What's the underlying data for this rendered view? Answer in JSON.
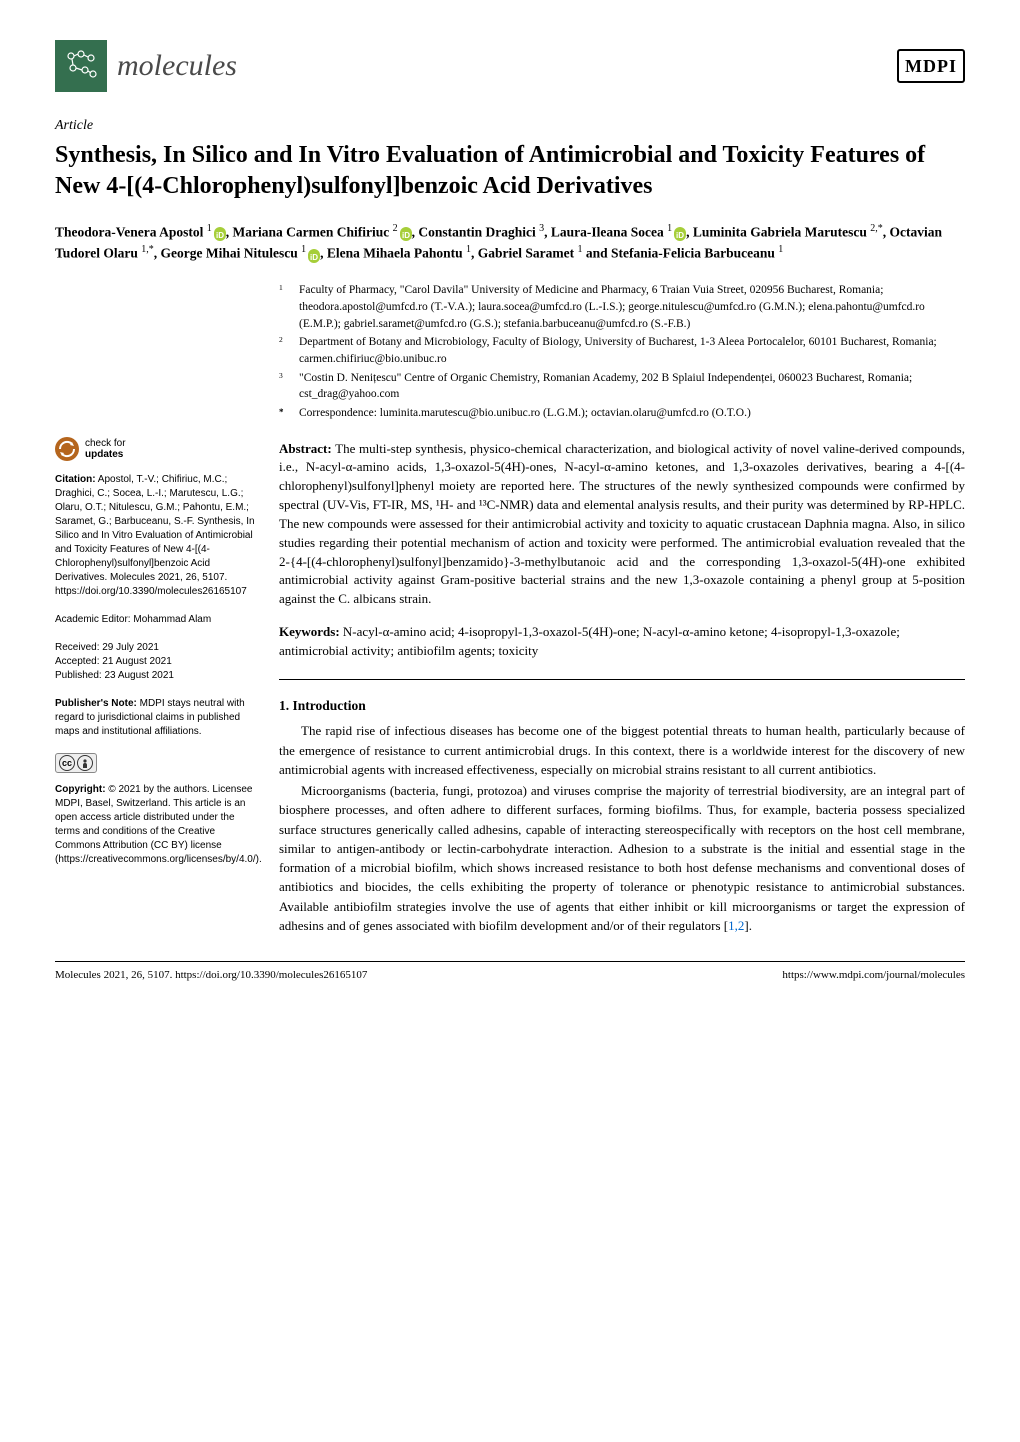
{
  "journal": {
    "name": "molecules",
    "logo_bg": "#346F4F",
    "publisher": "MDPI"
  },
  "article_type": "Article",
  "title": "Synthesis, In Silico and In Vitro Evaluation of Antimicrobial and Toxicity Features of New 4-[(4-Chlorophenyl)sulfonyl]benzoic Acid Derivatives",
  "authors_html": "Theodora-Venera Apostol ¹ ⓘ, Mariana Carmen Chifiriuc ² ⓘ, Constantin Draghici ³, Laura-Ileana Socea ¹ ⓘ, Luminita Gabriela Marutescu ²,*, Octavian Tudorel Olaru ¹,*, George Mihai Nitulescu ¹ ⓘ, Elena Mihaela Pahontu ¹, Gabriel Saramet ¹ and Stefania-Felicia Barbuceanu ¹",
  "authors": [
    {
      "name": "Theodora-Venera Apostol",
      "sup": "1",
      "orcid": true
    },
    {
      "name": "Mariana Carmen Chifiriuc",
      "sup": "2",
      "orcid": true
    },
    {
      "name": "Constantin Draghici",
      "sup": "3",
      "orcid": false
    },
    {
      "name": "Laura-Ileana Socea",
      "sup": "1",
      "orcid": true
    },
    {
      "name": "Luminita Gabriela Marutescu",
      "sup": "2,*",
      "orcid": false
    },
    {
      "name": "Octavian Tudorel Olaru",
      "sup": "1,*",
      "orcid": false
    },
    {
      "name": "George Mihai Nitulescu",
      "sup": "1",
      "orcid": true
    },
    {
      "name": "Elena Mihaela Pahontu",
      "sup": "1",
      "orcid": false
    },
    {
      "name": "Gabriel Saramet",
      "sup": "1",
      "orcid": false
    },
    {
      "name": "Stefania-Felicia Barbuceanu",
      "sup": "1",
      "orcid": false
    }
  ],
  "affiliations": [
    {
      "num": "1",
      "text": "Faculty of Pharmacy, \"Carol Davila\" University of Medicine and Pharmacy, 6 Traian Vuia Street, 020956 Bucharest, Romania; theodora.apostol@umfcd.ro (T.-V.A.); laura.socea@umfcd.ro (L.-I.S.); george.nitulescu@umfcd.ro (G.M.N.); elena.pahontu@umfcd.ro (E.M.P.); gabriel.saramet@umfcd.ro (G.S.); stefania.barbuceanu@umfcd.ro (S.-F.B.)"
    },
    {
      "num": "2",
      "text": "Department of Botany and Microbiology, Faculty of Biology, University of Bucharest, 1-3 Aleea Portocalelor, 60101 Bucharest, Romania; carmen.chifiriuc@bio.unibuc.ro"
    },
    {
      "num": "3",
      "text": "\"Costin D. Nenițescu\" Centre of Organic Chemistry, Romanian Academy, 202 B Splaiul Independenței, 060023 Bucharest, Romania; cst_drag@yahoo.com"
    },
    {
      "num": "*",
      "text": "Correspondence: luminita.marutescu@bio.unibuc.ro (L.G.M.); octavian.olaru@umfcd.ro (O.T.O.)"
    }
  ],
  "sidebar": {
    "check_updates": "check for updates",
    "citation_label": "Citation:",
    "citation_text": "Apostol, T.-V.; Chifiriuc, M.C.; Draghici, C.; Socea, L.-I.; Marutescu, L.G.; Olaru, O.T.; Nitulescu, G.M.; Pahontu, E.M.; Saramet, G.; Barbuceanu, S.-F. Synthesis, In Silico and In Vitro Evaluation of Antimicrobial and Toxicity Features of New 4-[(4-Chlorophenyl)sulfonyl]benzoic Acid Derivatives. Molecules 2021, 26, 5107. https://doi.org/10.3390/molecules26165107",
    "editor_label": "Academic Editor:",
    "editor_name": "Mohammad Alam",
    "received": "Received: 29 July 2021",
    "accepted": "Accepted: 21 August 2021",
    "published": "Published: 23 August 2021",
    "publishers_note_label": "Publisher's Note:",
    "publishers_note": "MDPI stays neutral with regard to jurisdictional claims in published maps and institutional affiliations.",
    "copyright_label": "Copyright:",
    "copyright_text": "© 2021 by the authors. Licensee MDPI, Basel, Switzerland. This article is an open access article distributed under the terms and conditions of the Creative Commons Attribution (CC BY) license (https://creativecommons.org/licenses/by/4.0/)."
  },
  "abstract": {
    "label": "Abstract:",
    "text": "The multi-step synthesis, physico-chemical characterization, and biological activity of novel valine-derived compounds, i.e., N-acyl-α-amino acids, 1,3-oxazol-5(4H)-ones, N-acyl-α-amino ketones, and 1,3-oxazoles derivatives, bearing a 4-[(4-chlorophenyl)sulfonyl]phenyl moiety are reported here. The structures of the newly synthesized compounds were confirmed by spectral (UV-Vis, FT-IR, MS, ¹H- and ¹³C-NMR) data and elemental analysis results, and their purity was determined by RP-HPLC. The new compounds were assessed for their antimicrobial activity and toxicity to aquatic crustacean Daphnia magna. Also, in silico studies regarding their potential mechanism of action and toxicity were performed. The antimicrobial evaluation revealed that the 2-{4-[(4-chlorophenyl)sulfonyl]benzamido}-3-methylbutanoic acid and the corresponding 1,3-oxazol-5(4H)-one exhibited antimicrobial activity against Gram-positive bacterial strains and the new 1,3-oxazole containing a phenyl group at 5-position against the C. albicans strain."
  },
  "keywords": {
    "label": "Keywords:",
    "text": "N-acyl-α-amino acid; 4-isopropyl-1,3-oxazol-5(4H)-one; N-acyl-α-amino ketone; 4-isopropyl-1,3-oxazole; antimicrobial activity; antibiofilm agents; toxicity"
  },
  "section1": {
    "heading": "1. Introduction",
    "p1": "The rapid rise of infectious diseases has become one of the biggest potential threats to human health, particularly because of the emergence of resistance to current antimicrobial drugs. In this context, there is a worldwide interest for the discovery of new antimicrobial agents with increased effectiveness, especially on microbial strains resistant to all current antibiotics.",
    "p2": "Microorganisms (bacteria, fungi, protozoa) and viruses comprise the majority of terrestrial biodiversity, are an integral part of biosphere processes, and often adhere to different surfaces, forming biofilms. Thus, for example, bacteria possess specialized surface structures generically called adhesins, capable of interacting stereospecifically with receptors on the host cell membrane, similar to antigen-antibody or lectin-carbohydrate interaction. Adhesion to a substrate is the initial and essential stage in the formation of a microbial biofilm, which shows increased resistance to both host defense mechanisms and conventional doses of antibiotics and biocides, the cells exhibiting the property of tolerance or phenotypic resistance to antimicrobial substances. Available antibiofilm strategies involve the use of agents that either inhibit or kill microorganisms or target the expression of adhesins and of genes associated with biofilm development and/or of their regulators [",
    "p2_refs": "1,2",
    "p2_end": "]."
  },
  "footer": {
    "left": "Molecules 2021, 26, 5107. https://doi.org/10.3390/molecules26165107",
    "right": "https://www.mdpi.com/journal/molecules"
  },
  "colors": {
    "orcid": "#a6ce39",
    "link": "#0066cc",
    "check_icon": "#b5651d"
  }
}
